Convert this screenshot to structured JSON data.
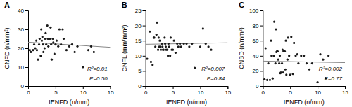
{
  "chart_data": [
    {
      "type": "scatter",
      "title": "A",
      "xlabel": "IENFD (n/mm)",
      "ylabel": "CNFD (n/mm²)",
      "xlim": [
        0,
        15
      ],
      "ylim": [
        0,
        40
      ],
      "xticks": [
        0,
        5,
        10,
        15
      ],
      "yticks": [
        0,
        10,
        20,
        30,
        40
      ],
      "annotations": [
        "R²=0.01",
        "P=0.50"
      ],
      "series": [
        {
          "type": "scatter",
          "color": "#1a1a1a",
          "x": [
            0.3,
            0.5,
            0.9,
            1.1,
            1.3,
            1.5,
            1.6,
            1.8,
            2.0,
            2.1,
            2.3,
            2.4,
            2.5,
            2.6,
            2.7,
            2.8,
            3.0,
            3.1,
            3.2,
            3.3,
            3.5,
            3.6,
            3.7,
            3.8,
            4.0,
            4.1,
            4.2,
            4.3,
            4.5,
            4.6,
            4.8,
            5.0,
            5.2,
            5.5,
            5.7,
            6.0,
            6.3,
            6.5,
            7.0,
            7.5,
            8.0,
            8.5,
            9.0,
            10.0,
            11.0,
            11.5,
            12.0
          ],
          "values": [
            19,
            18,
            19,
            22,
            20,
            24,
            19,
            14,
            22,
            25,
            16,
            30,
            24,
            26,
            22,
            18,
            20,
            25,
            28,
            22,
            32,
            25,
            21,
            25,
            25,
            31,
            22,
            14,
            25,
            23,
            17,
            22,
            24,
            21,
            30,
            22,
            30,
            25,
            19,
            21,
            22,
            18,
            21,
            10,
            19,
            21,
            18
          ]
        },
        {
          "type": "line",
          "color": "#888888",
          "x": [
            0,
            15
          ],
          "values": [
            23.2,
            20.5
          ]
        }
      ]
    },
    {
      "type": "scatter",
      "title": "B",
      "xlabel": "IENFD (n/mm)",
      "ylabel": "CNFL (mm/mm²)",
      "xlim": [
        0,
        15
      ],
      "ylim": [
        0,
        25
      ],
      "xticks": [
        0,
        5,
        10,
        15
      ],
      "yticks": [
        0,
        5,
        10,
        15,
        20,
        25
      ],
      "annotations": [
        "R²=0.007",
        "P=0.84"
      ],
      "series": [
        {
          "type": "scatter",
          "color": "#1a1a1a",
          "x": [
            0.3,
            0.8,
            1.0,
            1.3,
            1.5,
            1.6,
            1.8,
            2.0,
            2.1,
            2.3,
            2.4,
            2.5,
            2.6,
            2.7,
            2.8,
            3.0,
            3.1,
            3.2,
            3.3,
            3.5,
            3.6,
            3.7,
            3.8,
            4.0,
            4.1,
            4.2,
            4.3,
            4.5,
            4.6,
            4.8,
            5.0,
            5.2,
            5.5,
            5.8,
            6.0,
            6.3,
            6.5,
            7.0,
            7.5,
            8.0,
            8.5,
            9.0,
            10.0,
            10.5,
            11.0,
            11.5,
            12.0
          ],
          "values": [
            9,
            18,
            8,
            7,
            16,
            16,
            13,
            17,
            21,
            12,
            16,
            13,
            15,
            13,
            12,
            14,
            13,
            12,
            12,
            16,
            14,
            13,
            12,
            12,
            10,
            14,
            13,
            10,
            16,
            12,
            12,
            15,
            11,
            14,
            13,
            14,
            13,
            14,
            14,
            13,
            14,
            6,
            13,
            19,
            14,
            13,
            12
          ]
        },
        {
          "type": "line",
          "color": "#888888",
          "x": [
            0,
            15
          ],
          "values": [
            13.8,
            14.3
          ]
        }
      ]
    },
    {
      "type": "scatter",
      "title": "C",
      "xlabel": "IENFD (n/mm)",
      "ylabel": "CNBD (n/mm²)",
      "xlim": [
        0,
        15
      ],
      "ylim": [
        0,
        100
      ],
      "xticks": [
        0,
        5,
        10,
        15
      ],
      "yticks": [
        0,
        20,
        40,
        60,
        80,
        100
      ],
      "annotations": [
        "R²=0.002",
        "P=0.77"
      ],
      "series": [
        {
          "type": "scatter",
          "color": "#1a1a1a",
          "x": [
            0.3,
            0.5,
            0.8,
            1.0,
            1.3,
            1.5,
            1.6,
            1.8,
            2.0,
            2.1,
            2.3,
            2.4,
            2.5,
            2.6,
            2.7,
            2.8,
            3.0,
            3.1,
            3.2,
            3.3,
            3.5,
            3.6,
            3.7,
            3.8,
            4.0,
            4.1,
            4.2,
            4.3,
            4.5,
            4.6,
            4.8,
            5.0,
            5.2,
            5.5,
            5.7,
            6.0,
            6.3,
            6.5,
            7.0,
            7.5,
            8.0,
            8.5,
            9.0,
            10.0,
            10.5,
            11.0,
            11.5,
            12.0
          ],
          "values": [
            9,
            50,
            8,
            30,
            8,
            60,
            40,
            10,
            40,
            85,
            30,
            75,
            45,
            46,
            46,
            35,
            30,
            40,
            17,
            18,
            30,
            48,
            18,
            46,
            46,
            22,
            60,
            15,
            35,
            64,
            40,
            15,
            65,
            16,
            57,
            40,
            42,
            30,
            40,
            40,
            30,
            22,
            30,
            5,
            42,
            35,
            10,
            40
          ]
        },
        {
          "type": "line",
          "color": "#888888",
          "x": [
            0,
            15
          ],
          "values": [
            33.0,
            31.0
          ]
        }
      ]
    }
  ]
}
